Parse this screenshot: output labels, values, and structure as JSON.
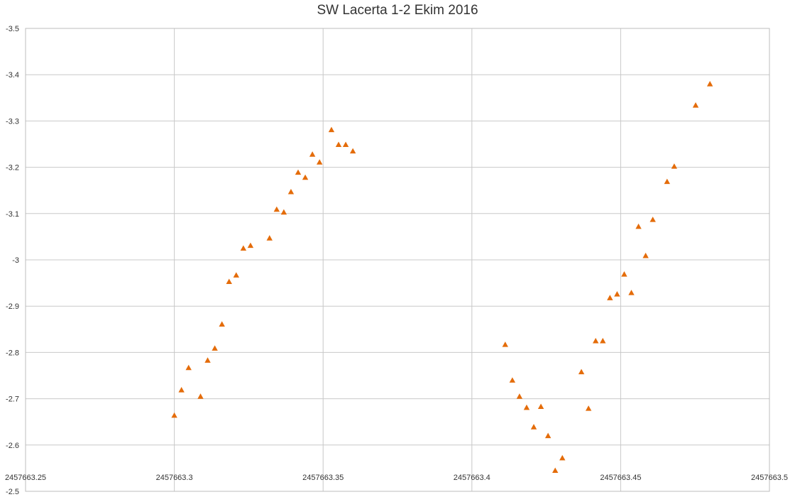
{
  "chart_data": {
    "type": "scatter",
    "title": "SW Lacerta 1-2 Ekim 2016",
    "xlabel": "",
    "ylabel": "",
    "xlim": [
      2457663.25,
      2457663.5
    ],
    "ylim": [
      -2.5,
      -3.5
    ],
    "y_reversed": true,
    "x_ticks": [
      "2457663.25",
      "2457663.3",
      "2457663.35",
      "2457663.4",
      "2457663.45",
      "2457663.5"
    ],
    "y_ticks": [
      "-3.5",
      "-3.4",
      "-3.3",
      "-3.2",
      "-3.1",
      "-3",
      "-2.9",
      "-2.8",
      "-2.7",
      "-2.6",
      "-2.5"
    ],
    "grid": true,
    "legend": "none",
    "marker": "triangle",
    "marker_color": "#e46c0a",
    "series": [
      {
        "points": [
          [
            2457663.3,
            -2.664
          ],
          [
            2457663.3024,
            -2.719
          ],
          [
            2457663.3048,
            -2.767
          ],
          [
            2457663.3088,
            -2.705
          ],
          [
            2457663.3112,
            -2.783
          ],
          [
            2457663.3136,
            -2.809
          ],
          [
            2457663.316,
            -2.861
          ],
          [
            2457663.3184,
            -2.953
          ],
          [
            2457663.3208,
            -2.967
          ],
          [
            2457663.3232,
            -3.025
          ],
          [
            2457663.3256,
            -3.031
          ],
          [
            2457663.332,
            -3.047
          ],
          [
            2457663.3344,
            -3.109
          ],
          [
            2457663.3368,
            -3.103
          ],
          [
            2457663.3392,
            -3.147
          ],
          [
            2457663.3416,
            -3.189
          ],
          [
            2457663.344,
            -3.178
          ],
          [
            2457663.3464,
            -3.228
          ],
          [
            2457663.3488,
            -3.211
          ],
          [
            2457663.3528,
            -3.281
          ],
          [
            2457663.3552,
            -3.249
          ],
          [
            2457663.3576,
            -3.249
          ],
          [
            2457663.36,
            -3.235
          ],
          [
            2457663.4112,
            -2.817
          ],
          [
            2457663.4136,
            -2.74
          ],
          [
            2457663.416,
            -2.705
          ],
          [
            2457663.4184,
            -2.681
          ],
          [
            2457663.4208,
            -2.639
          ],
          [
            2457663.4232,
            -2.683
          ],
          [
            2457663.4256,
            -2.62
          ],
          [
            2457663.428,
            -2.545
          ],
          [
            2457663.4304,
            -2.572
          ],
          [
            2457663.4368,
            -2.758
          ],
          [
            2457663.4392,
            -2.679
          ],
          [
            2457663.4416,
            -2.825
          ],
          [
            2457663.444,
            -2.825
          ],
          [
            2457663.4464,
            -2.918
          ],
          [
            2457663.4488,
            -2.926
          ],
          [
            2457663.4512,
            -2.969
          ],
          [
            2457663.4536,
            -2.929
          ],
          [
            2457663.456,
            -3.072
          ],
          [
            2457663.4584,
            -3.009
          ],
          [
            2457663.4608,
            -3.087
          ],
          [
            2457663.4656,
            -3.169
          ],
          [
            2457663.468,
            -3.202
          ],
          [
            2457663.4752,
            -3.334
          ],
          [
            2457663.48,
            -3.38
          ]
        ]
      }
    ]
  }
}
